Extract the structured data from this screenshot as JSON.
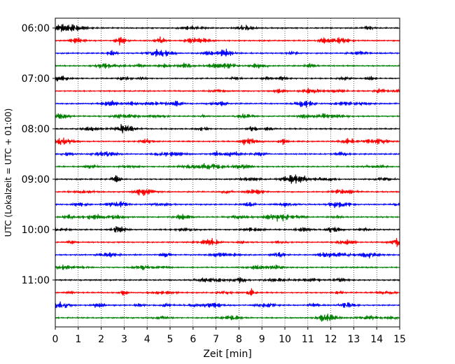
{
  "chart_data": {
    "type": "line",
    "title": "",
    "xlabel": "Zeit  [min]",
    "ylabel": "UTC (Lokalzeit = UTC + 01:00)",
    "xlim": [
      0,
      15
    ],
    "x_ticks": [
      "0",
      "1",
      "2",
      "3",
      "4",
      "5",
      "6",
      "7",
      "8",
      "9",
      "10",
      "11",
      "12",
      "13",
      "14",
      "15"
    ],
    "y_ticks": [
      "06:00",
      "07:00",
      "08:00",
      "09:00",
      "10:00",
      "11:00"
    ],
    "time_range": [
      "06:00",
      "11:45"
    ],
    "trace_interval_minutes": 15,
    "trace_count": 24,
    "trace_colors": [
      "#000000",
      "#ff0000",
      "#0000ff",
      "#008000"
    ],
    "grid": "vertical dotted at each minute",
    "signal": "seismic noise (continuous oscillation)"
  }
}
